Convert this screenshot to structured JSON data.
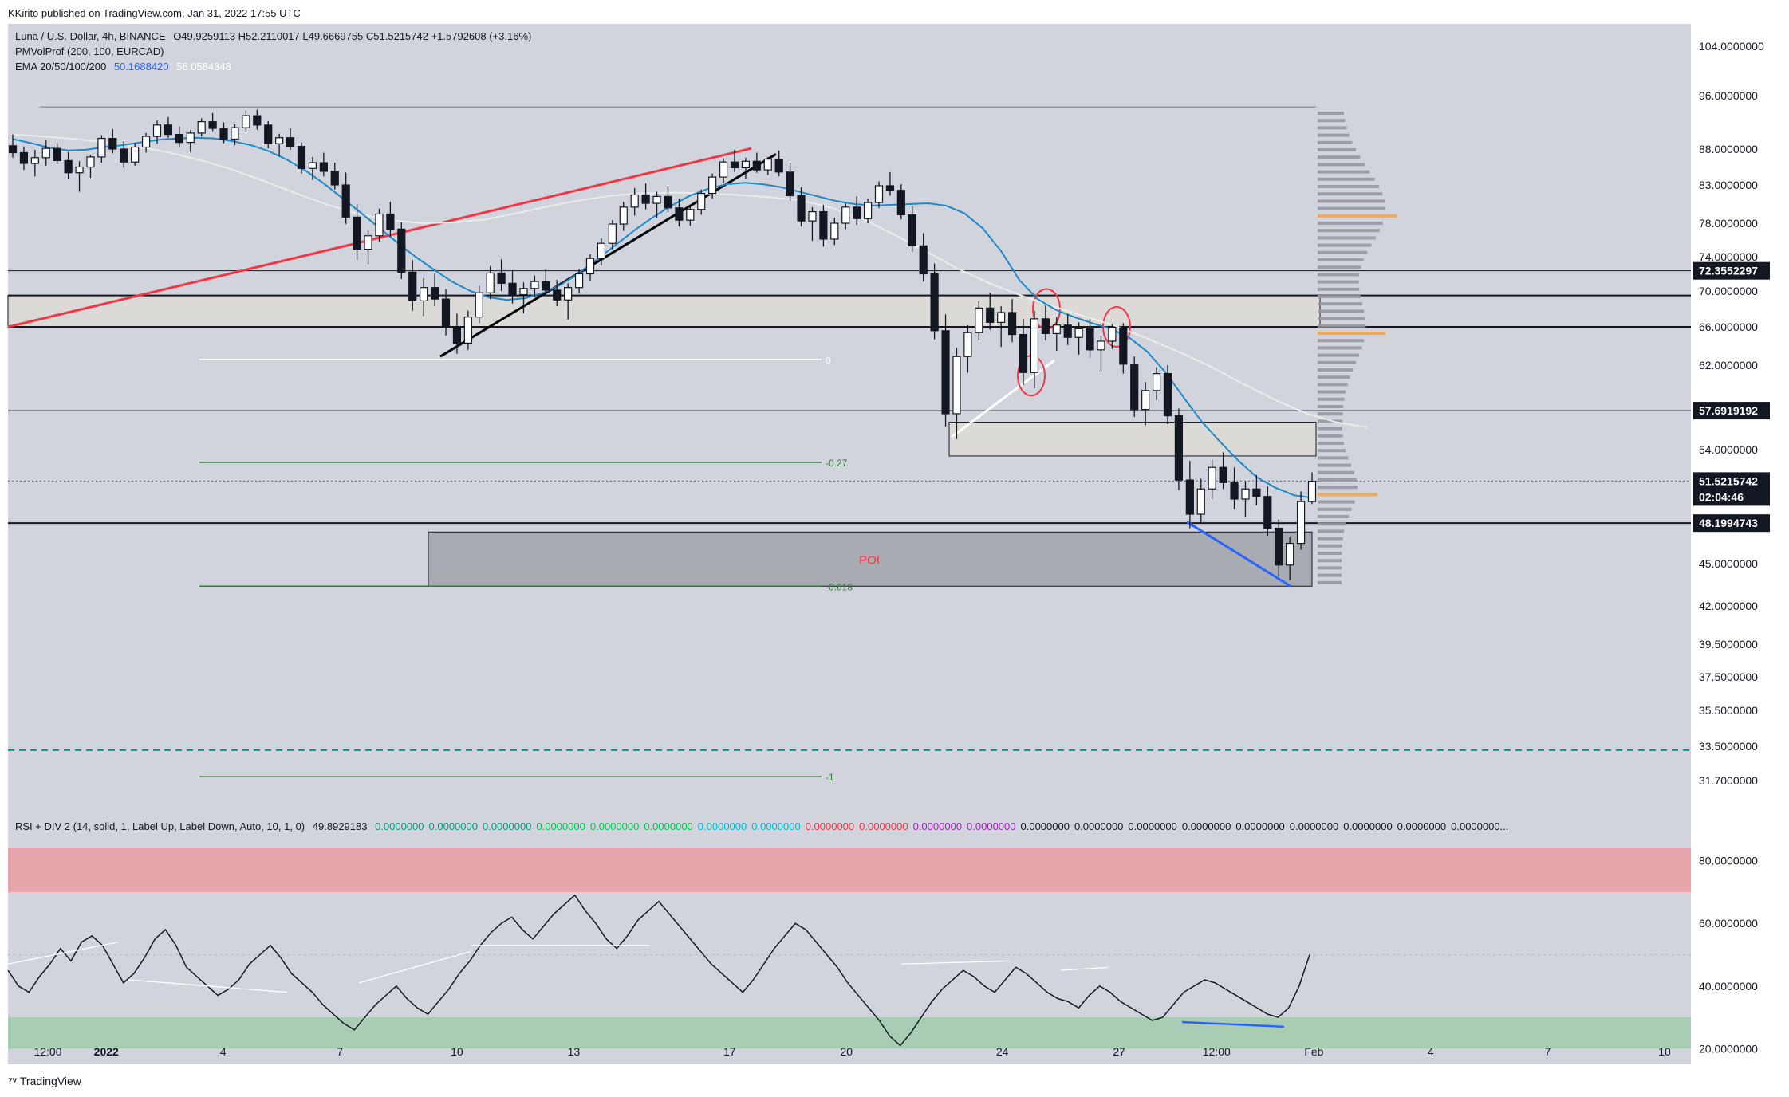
{
  "header": {
    "published": "KKirito published on TradingView.com, Jan 31, 2022 17:55 UTC"
  },
  "legend": {
    "symbol": "Luna / U.S. Dollar, 4h, BINANCE",
    "ohlc": "O49.9259113  H52.2110017  L49.6669755  C51.5215742  +1.5792608 (+3.16%)",
    "vp": "PMVolProf (200, 100, EURCAD)",
    "ema_label": "EMA 20/50/100/200",
    "ema_v1": "50.1688420",
    "ema_v2": "56.0584348",
    "ema_v1_color": "#2962ff",
    "ema_v2_color": "#ffffff"
  },
  "rsi_legend": {
    "label": "RSI + DIV 2 (14, solid, 1, Label Up, Label Down, Auto, 10, 1, 0)",
    "value": "49.8929183",
    "values": [
      {
        "v": "0.0000000",
        "c": "#089981"
      },
      {
        "v": "0.0000000",
        "c": "#089981"
      },
      {
        "v": "0.0000000",
        "c": "#089981"
      },
      {
        "v": "0.0000000",
        "c": "#00c853"
      },
      {
        "v": "0.0000000",
        "c": "#00c853"
      },
      {
        "v": "0.0000000",
        "c": "#00c853"
      },
      {
        "v": "0.0000000",
        "c": "#00bcd4"
      },
      {
        "v": "0.0000000",
        "c": "#00bcd4"
      },
      {
        "v": "0.0000000",
        "c": "#f23645"
      },
      {
        "v": "0.0000000",
        "c": "#f23645"
      },
      {
        "v": "0.0000000",
        "c": "#9c27b0"
      },
      {
        "v": "0.0000000",
        "c": "#9c27b0"
      },
      {
        "v": "0.0000000",
        "c": "#131722"
      },
      {
        "v": "0.0000000",
        "c": "#131722"
      },
      {
        "v": "0.0000000",
        "c": "#131722"
      },
      {
        "v": "0.0000000",
        "c": "#131722"
      },
      {
        "v": "0.0000000",
        "c": "#131722"
      },
      {
        "v": "0.0000000",
        "c": "#131722"
      },
      {
        "v": "0.0000000",
        "c": "#131722"
      },
      {
        "v": "0.0000000",
        "c": "#131722"
      },
      {
        "v": "0.0000000...",
        "c": "#131722"
      }
    ]
  },
  "chart_data": {
    "type": "candlestick",
    "price_axis_ticks": [
      "104.0000000",
      "96.0000000",
      "88.0000000",
      "83.0000000",
      "78.0000000",
      "74.0000000",
      "70.0000000",
      "66.0000000",
      "62.0000000",
      "54.0000000",
      "45.0000000",
      "42.0000000",
      "39.5000000",
      "37.5000000",
      "35.5000000",
      "33.5000000",
      "31.7000000"
    ],
    "price_axis_values": [
      104,
      96,
      88,
      83,
      78,
      74,
      70,
      66,
      62,
      54,
      45,
      42,
      39.5,
      37.5,
      35.5,
      33.5,
      31.7
    ],
    "price_tags": [
      {
        "label": "72.3552297",
        "value": 72.3552297,
        "style": "black"
      },
      {
        "label": "57.6919192",
        "value": 57.6919192,
        "style": "black"
      },
      {
        "label": "51.5215742",
        "value": 51.5215742,
        "style": "black"
      },
      {
        "label": "02:04:46",
        "value": 51.5215742,
        "style": "black-sub"
      },
      {
        "label": "48.1994743",
        "value": 48.1994743,
        "style": "black"
      }
    ],
    "time_axis": [
      {
        "label": "12:00",
        "bar": 3
      },
      {
        "label": "2022",
        "bar": 12
      },
      {
        "label": "4",
        "bar": 30
      },
      {
        "label": "7",
        "bar": 48
      },
      {
        "label": "10",
        "bar": 66
      },
      {
        "label": "13",
        "bar": 84
      },
      {
        "label": "17",
        "bar": 108
      },
      {
        "label": "20",
        "bar": 126
      },
      {
        "label": "24",
        "bar": 150
      },
      {
        "label": "27",
        "bar": 168
      },
      {
        "label": "12:00",
        "bar": 183
      },
      {
        "label": "Feb",
        "bar": 198
      },
      {
        "label": "4",
        "bar": 216
      },
      {
        "label": "7",
        "bar": 234
      },
      {
        "label": "10",
        "bar": 252
      }
    ],
    "fib_levels": [
      {
        "label": "",
        "value": 94.3
      },
      {
        "label": "0",
        "value": 62.6
      },
      {
        "label": "-0.27",
        "value": 53.0
      },
      {
        "label": "-0.618",
        "value": 43.4
      },
      {
        "label": "-1",
        "value": 31.9
      }
    ],
    "zones": [
      {
        "label": "",
        "top": 69.5,
        "bottom": 66.0
      },
      {
        "label": "",
        "top": 56.6,
        "bottom": 53.5
      },
      {
        "label": "POI",
        "top": 47.5,
        "bottom": 43.4
      }
    ],
    "horizontal_levels": [
      72.3552297,
      57.6919192,
      48.1994743,
      33.3
    ],
    "ohlc_series": [
      [
        88.5,
        90.2,
        86.8,
        87.5
      ],
      [
        87.5,
        88.4,
        85.1,
        86.0
      ],
      [
        86.0,
        87.9,
        84.2,
        86.8
      ],
      [
        86.8,
        89.3,
        85.7,
        88.1
      ],
      [
        88.1,
        88.9,
        85.9,
        86.4
      ],
      [
        86.4,
        87.6,
        83.9,
        84.7
      ],
      [
        84.7,
        86.3,
        82.1,
        85.5
      ],
      [
        85.5,
        87.2,
        84.0,
        86.9
      ],
      [
        86.9,
        90.1,
        86.1,
        89.6
      ],
      [
        89.6,
        91.0,
        87.4,
        88.0
      ],
      [
        88.0,
        89.2,
        85.4,
        86.2
      ],
      [
        86.2,
        88.9,
        85.7,
        88.3
      ],
      [
        88.3,
        90.4,
        87.5,
        89.9
      ],
      [
        89.9,
        92.3,
        88.8,
        91.6
      ],
      [
        91.6,
        92.8,
        89.7,
        90.2
      ],
      [
        90.2,
        91.4,
        88.3,
        89.0
      ],
      [
        89.0,
        90.8,
        87.6,
        90.4
      ],
      [
        90.4,
        92.6,
        89.9,
        92.1
      ],
      [
        92.1,
        93.4,
        90.7,
        91.1
      ],
      [
        91.1,
        92.0,
        88.9,
        89.5
      ],
      [
        89.5,
        91.7,
        88.6,
        91.2
      ],
      [
        91.2,
        93.8,
        90.5,
        93.0
      ],
      [
        93.0,
        93.9,
        90.9,
        91.6
      ],
      [
        91.6,
        92.2,
        88.1,
        88.8
      ],
      [
        88.8,
        90.3,
        87.0,
        89.7
      ],
      [
        89.7,
        91.1,
        87.9,
        88.4
      ],
      [
        88.4,
        89.0,
        84.6,
        85.3
      ],
      [
        85.3,
        86.9,
        83.7,
        86.1
      ],
      [
        86.1,
        87.5,
        84.2,
        84.9
      ],
      [
        84.9,
        86.1,
        82.4,
        83.0
      ],
      [
        83.0,
        84.7,
        77.9,
        78.8
      ],
      [
        78.8,
        80.5,
        73.6,
        74.9
      ],
      [
        74.9,
        77.2,
        73.1,
        76.5
      ],
      [
        76.5,
        79.9,
        75.8,
        79.2
      ],
      [
        79.2,
        80.8,
        76.4,
        77.3
      ],
      [
        77.3,
        78.1,
        71.4,
        72.2
      ],
      [
        72.2,
        73.6,
        67.8,
        68.9
      ],
      [
        68.9,
        71.5,
        67.2,
        70.4
      ],
      [
        70.4,
        72.0,
        68.3,
        69.1
      ],
      [
        69.1,
        70.2,
        65.1,
        66.0
      ],
      [
        66.0,
        67.5,
        63.2,
        64.3
      ],
      [
        64.3,
        67.8,
        63.6,
        67.1
      ],
      [
        67.1,
        70.6,
        66.4,
        69.8
      ],
      [
        69.8,
        72.9,
        69.1,
        72.1
      ],
      [
        72.1,
        73.7,
        70.0,
        70.9
      ],
      [
        70.9,
        72.3,
        68.6,
        69.6
      ],
      [
        69.6,
        71.0,
        67.5,
        70.3
      ],
      [
        70.3,
        71.8,
        69.4,
        71.1
      ],
      [
        71.1,
        72.5,
        69.8,
        70.1
      ],
      [
        70.1,
        71.3,
        68.3,
        69.0
      ],
      [
        69.0,
        70.9,
        66.8,
        70.4
      ],
      [
        70.4,
        72.6,
        69.7,
        72.0
      ],
      [
        72.0,
        74.3,
        71.2,
        73.8
      ],
      [
        73.8,
        76.2,
        73.0,
        75.6
      ],
      [
        75.6,
        78.4,
        74.9,
        77.9
      ],
      [
        77.9,
        80.8,
        77.1,
        80.1
      ],
      [
        80.1,
        82.6,
        79.0,
        81.7
      ],
      [
        81.7,
        83.2,
        79.8,
        80.6
      ],
      [
        80.6,
        82.1,
        78.7,
        81.5
      ],
      [
        81.5,
        82.9,
        79.4,
        80.0
      ],
      [
        80.0,
        81.2,
        77.6,
        78.4
      ],
      [
        78.4,
        80.3,
        77.7,
        79.8
      ],
      [
        79.8,
        82.4,
        79.1,
        81.9
      ],
      [
        81.9,
        84.6,
        81.2,
        84.1
      ],
      [
        84.1,
        86.7,
        83.3,
        86.2
      ],
      [
        86.2,
        87.9,
        84.8,
        85.4
      ],
      [
        85.4,
        86.8,
        83.9,
        86.3
      ],
      [
        86.3,
        87.5,
        84.7,
        85.1
      ],
      [
        85.1,
        86.9,
        84.4,
        86.6
      ],
      [
        86.6,
        87.8,
        84.2,
        84.8
      ],
      [
        84.8,
        86.1,
        80.9,
        81.6
      ],
      [
        81.6,
        82.7,
        77.6,
        78.3
      ],
      [
        78.3,
        80.1,
        75.9,
        79.5
      ],
      [
        79.5,
        80.4,
        75.2,
        76.1
      ],
      [
        76.1,
        78.7,
        75.4,
        78.0
      ],
      [
        78.0,
        80.6,
        77.3,
        80.1
      ],
      [
        80.1,
        81.5,
        77.8,
        78.6
      ],
      [
        78.6,
        81.2,
        78.0,
        80.7
      ],
      [
        80.7,
        83.5,
        80.0,
        82.9
      ],
      [
        82.9,
        84.8,
        81.6,
        82.3
      ],
      [
        82.3,
        83.1,
        78.5,
        79.1
      ],
      [
        79.1,
        80.2,
        74.6,
        75.3
      ],
      [
        75.3,
        76.8,
        71.1,
        72.0
      ],
      [
        72.0,
        73.2,
        64.7,
        65.6
      ],
      [
        65.6,
        67.4,
        56.2,
        57.4
      ],
      [
        57.4,
        63.8,
        55.0,
        62.9
      ],
      [
        62.9,
        66.2,
        61.3,
        65.4
      ],
      [
        65.4,
        68.9,
        64.6,
        68.1
      ],
      [
        68.1,
        69.8,
        65.7,
        66.5
      ],
      [
        66.5,
        68.3,
        63.9,
        67.6
      ],
      [
        67.6,
        69.1,
        64.4,
        65.2
      ],
      [
        65.2,
        66.9,
        60.1,
        61.3
      ],
      [
        61.3,
        67.8,
        59.8,
        66.9
      ],
      [
        66.9,
        68.4,
        64.6,
        65.3
      ],
      [
        65.3,
        67.1,
        63.5,
        66.2
      ],
      [
        66.2,
        67.4,
        64.1,
        64.9
      ],
      [
        64.9,
        66.5,
        63.1,
        65.8
      ],
      [
        65.8,
        66.9,
        62.8,
        63.6
      ],
      [
        63.6,
        65.1,
        61.4,
        64.5
      ],
      [
        64.5,
        66.3,
        63.7,
        65.9
      ],
      [
        65.9,
        66.4,
        61.2,
        62.1
      ],
      [
        62.1,
        62.9,
        57.1,
        57.8
      ],
      [
        57.8,
        60.4,
        56.3,
        59.6
      ],
      [
        59.6,
        61.8,
        58.7,
        61.2
      ],
      [
        61.2,
        62.0,
        56.4,
        57.2
      ],
      [
        57.2,
        57.9,
        50.8,
        51.6
      ],
      [
        51.6,
        53.1,
        47.8,
        48.9
      ],
      [
        48.9,
        51.7,
        48.2,
        50.9
      ],
      [
        50.9,
        53.2,
        50.1,
        52.6
      ],
      [
        52.6,
        53.8,
        50.9,
        51.4
      ],
      [
        51.4,
        52.6,
        49.3,
        50.1
      ],
      [
        50.1,
        51.5,
        48.7,
        50.9
      ],
      [
        50.9,
        52.0,
        49.6,
        50.3
      ],
      [
        50.3,
        51.1,
        47.2,
        47.8
      ],
      [
        47.8,
        48.5,
        44.1,
        44.9
      ],
      [
        44.9,
        47.1,
        43.8,
        46.6
      ],
      [
        46.6,
        50.7,
        46.1,
        49.9
      ],
      [
        49.9,
        52.2,
        49.7,
        51.5
      ]
    ],
    "ema_fast": [
      89.5,
      88.9,
      88.2,
      87.8,
      87.9,
      88.3,
      88.6,
      89.0,
      89.4,
      89.6,
      89.7,
      89.6,
      89.2,
      88.6,
      87.7,
      86.5,
      85.0,
      83.2,
      81.3,
      79.4,
      77.5,
      75.7,
      74.0,
      72.5,
      71.1,
      70.0,
      69.3,
      69.0,
      69.2,
      69.8,
      70.8,
      72.2,
      73.8,
      75.5,
      77.2,
      78.8,
      80.3,
      81.6,
      82.5,
      83.1,
      83.3,
      83.1,
      82.7,
      82.1,
      81.5,
      80.9,
      80.5,
      80.3,
      80.4,
      80.5,
      80.6,
      80.3,
      79.3,
      77.4,
      74.7,
      71.3,
      69.1,
      67.9,
      67.1,
      66.4,
      65.8,
      64.9,
      63.4,
      61.3,
      58.9,
      56.6,
      54.7,
      53.1,
      51.8,
      51.0,
      50.4,
      50.2
    ],
    "ema_slow": [
      90.2,
      89.9,
      89.5,
      89.0,
      88.3,
      87.5,
      86.4,
      85.1,
      83.5,
      81.9,
      80.4,
      79.2,
      78.4,
      78.0,
      78.1,
      78.5,
      79.3,
      80.2,
      81.0,
      81.6,
      81.9,
      82.0,
      81.9,
      81.7,
      81.4,
      81.0,
      80.0,
      78.5,
      76.6,
      74.6,
      72.6,
      70.9,
      69.5,
      68.3,
      67.2,
      66.1,
      64.8,
      63.4,
      61.9,
      60.3,
      58.8,
      57.5,
      56.6,
      56.1
    ],
    "rsi": {
      "ylim": [
        15,
        85
      ],
      "ticks": [
        "80.0000000",
        "60.0000000",
        "40.0000000",
        "20.0000000"
      ],
      "tick_values": [
        80,
        60,
        40,
        20
      ],
      "overbought": 70,
      "oversold": 30,
      "series": [
        45,
        40,
        38,
        43,
        47,
        52,
        48,
        54,
        56,
        53,
        47,
        41,
        44,
        49,
        55,
        58,
        53,
        46,
        43,
        40,
        37,
        39,
        42,
        47,
        50,
        53,
        49,
        44,
        41,
        38,
        34,
        31,
        28,
        26,
        30,
        34,
        37,
        40,
        36,
        33,
        31,
        35,
        39,
        44,
        48,
        53,
        57,
        60,
        62,
        58,
        55,
        59,
        63,
        66,
        69,
        64,
        60,
        55,
        52,
        56,
        61,
        64,
        67,
        63,
        59,
        55,
        51,
        47,
        44,
        41,
        38,
        42,
        47,
        52,
        56,
        60,
        58,
        54,
        50,
        46,
        41,
        37,
        33,
        29,
        24,
        21,
        25,
        30,
        35,
        39,
        42,
        45,
        43,
        40,
        38,
        42,
        46,
        44,
        41,
        38,
        36,
        35,
        33,
        37,
        40,
        38,
        35,
        33,
        31,
        29,
        30,
        34,
        38,
        40,
        42,
        41,
        39,
        37,
        35,
        33,
        31,
        30,
        33,
        40,
        50
      ]
    }
  }
}
